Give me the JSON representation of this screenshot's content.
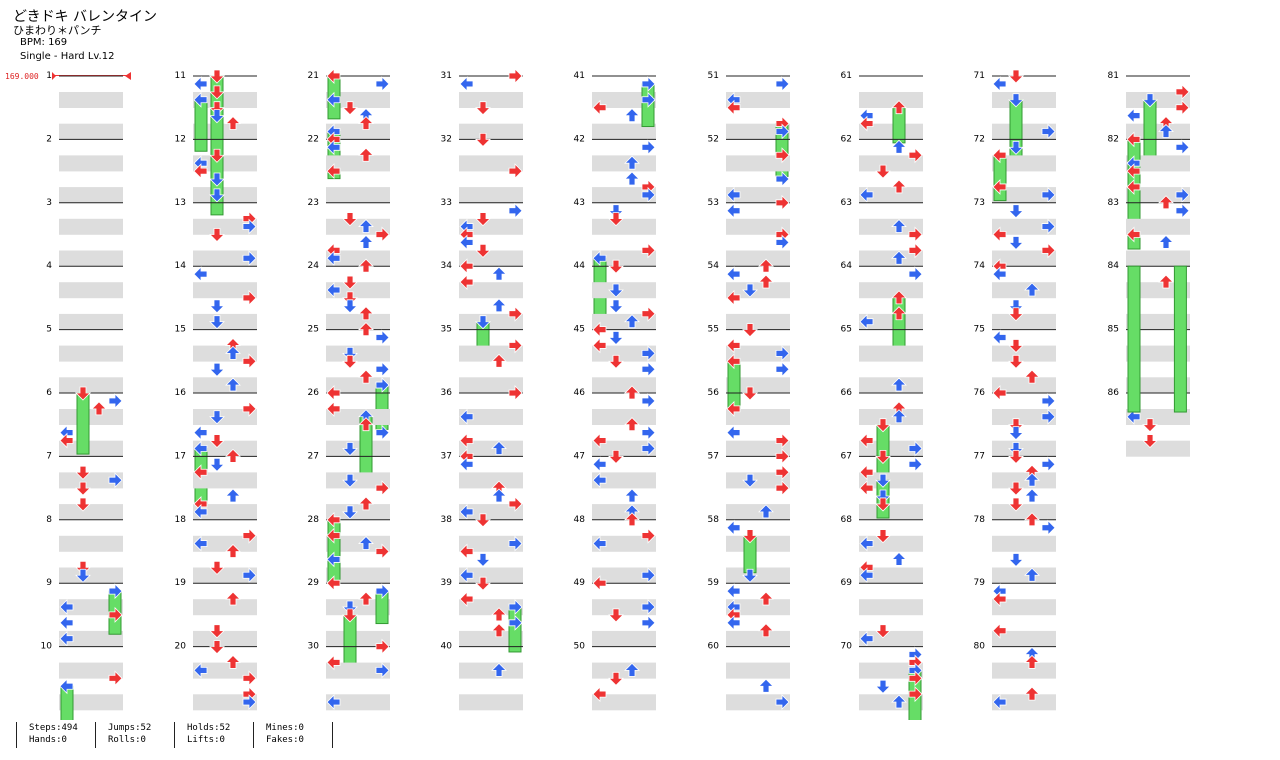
{
  "song": {
    "title": "どきドキ バレンタイン",
    "artist": "ひまわり＊パンチ",
    "bpm": "BPM: 169",
    "difficulty": "Single - Hard  Lv.12",
    "bpm_change": "169.000"
  },
  "colors": {
    "quarter": "#e33",
    "eighth": "#36e",
    "sixteenth": "#ee3",
    "twelfth": "#a3e",
    "hold": "#6d6",
    "band": "#ddd"
  },
  "measure_count": 86,
  "stats": {
    "steps": "Steps:494",
    "jumps": "Jumps:52",
    "holds": "Holds:52",
    "mines": "Mines:0",
    "hands": "Hands:0",
    "rolls": "Rolls:0",
    "lifts": "Lifts:0",
    "fakes": "Fakes:0"
  }
}
